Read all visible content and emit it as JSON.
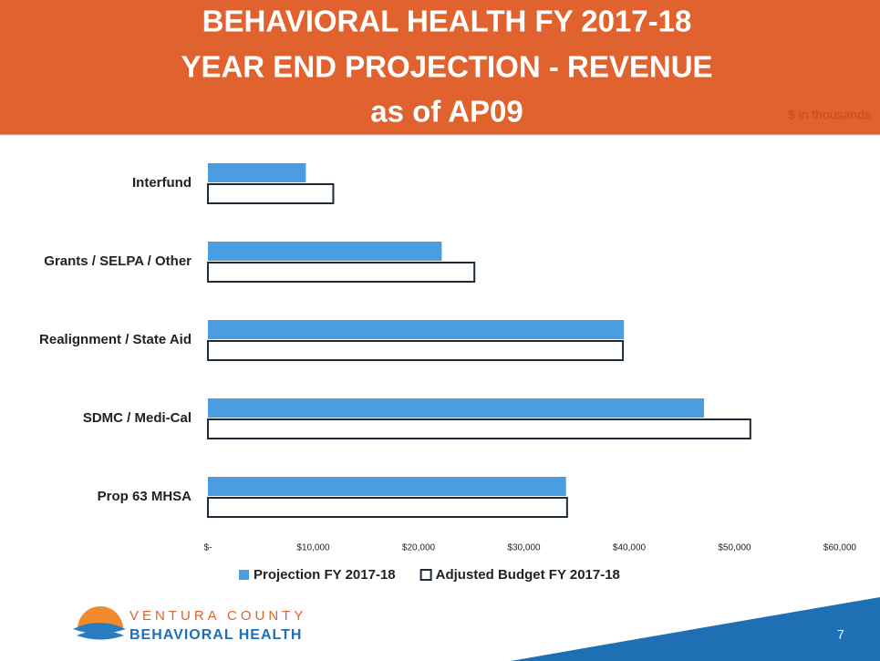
{
  "chart_data": {
    "type": "hbar",
    "title": [
      "BEHAVIORAL HEALTH FY 2017-18",
      "YEAR END PROJECTION - REVENUE",
      "as of AP09"
    ],
    "subtitle": "$ in thousands",
    "categories": [
      "Interfund",
      "Grants / SELPA / Other",
      "Realignment / State Aid",
      "SDMC / Medi-Cal",
      "Prop 63 MHSA"
    ],
    "series": [
      {
        "name": "Projection FY 2017-18",
        "color": "#4a9de0",
        "values": [
          9300,
          22200,
          39500,
          47100,
          34000
        ]
      },
      {
        "name": "Adjusted Budget FY 2017-18",
        "color": "#ffffff",
        "values": [
          11900,
          25300,
          39400,
          51500,
          34100
        ]
      }
    ],
    "xlim": [
      0,
      60000
    ],
    "xticks": [
      {
        "value": 0,
        "label": "$-"
      },
      {
        "value": 10000,
        "label": "$10,000"
      },
      {
        "value": 20000,
        "label": "$20,000"
      },
      {
        "value": 30000,
        "label": "$30,000"
      },
      {
        "value": 40000,
        "label": "$40,000"
      },
      {
        "value": 50000,
        "label": "$50,000"
      },
      {
        "value": 60000,
        "label": "$60,000"
      }
    ],
    "grid": false,
    "legend": "bottom"
  },
  "footer": {
    "org_line1": "VENTURA COUNTY",
    "org_line2": "BEHAVIORAL HEALTH",
    "page": "7"
  }
}
